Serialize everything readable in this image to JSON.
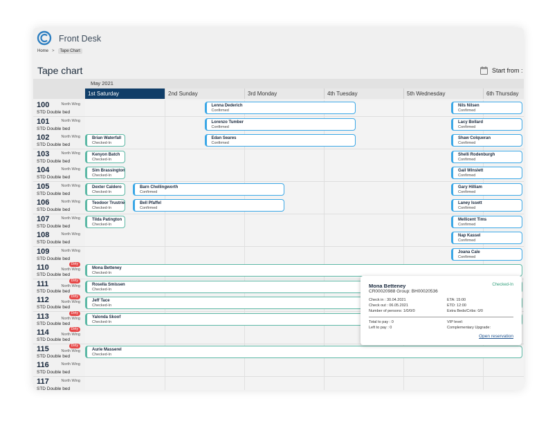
{
  "app": {
    "title": "Front Desk"
  },
  "breadcrumb": {
    "home": "Home",
    "sep": ">",
    "current": "Tape Chart"
  },
  "page": {
    "title": "Tape chart",
    "start_from_label": "Start from :"
  },
  "calendar": {
    "month": "May 2021",
    "days": [
      "1st Saturday",
      "2nd Sunday",
      "3rd Monday",
      "4th Tuesday",
      "5th Wednesday",
      "6th Thursday"
    ],
    "active_day_index": 0
  },
  "rooms": [
    {
      "number": "100",
      "wing": "North Wing",
      "type": "STD Double bed",
      "dirty": ""
    },
    {
      "number": "101",
      "wing": "North Wing",
      "type": "STD Double bed",
      "dirty": ""
    },
    {
      "number": "102",
      "wing": "North Wing",
      "type": "STD Double bed",
      "dirty": ""
    },
    {
      "number": "103",
      "wing": "North Wing",
      "type": "STD Double bed",
      "dirty": ""
    },
    {
      "number": "104",
      "wing": "North Wing",
      "type": "STD Double bed",
      "dirty": ""
    },
    {
      "number": "105",
      "wing": "North Wing",
      "type": "STD Double bed",
      "dirty": ""
    },
    {
      "number": "106",
      "wing": "North Wing",
      "type": "STD Double bed",
      "dirty": ""
    },
    {
      "number": "107",
      "wing": "North Wing",
      "type": "STD Double bed",
      "dirty": ""
    },
    {
      "number": "108",
      "wing": "North Wing",
      "type": "STD Double bed",
      "dirty": ""
    },
    {
      "number": "109",
      "wing": "North Wing",
      "type": "STD Double bed",
      "dirty": ""
    },
    {
      "number": "110",
      "wing": "North Wing",
      "type": "STD Double bed",
      "dirty": "Dirty"
    },
    {
      "number": "111",
      "wing": "North Wing",
      "type": "STD Double bed",
      "dirty": "Dirty"
    },
    {
      "number": "112",
      "wing": "North Wing",
      "type": "STD Double bed",
      "dirty": "Dirty"
    },
    {
      "number": "113",
      "wing": "North Wing",
      "type": "STD Double bed",
      "dirty": "Dirty"
    },
    {
      "number": "114",
      "wing": "North Wing",
      "type": "STD Double bed",
      "dirty": "Dirty"
    },
    {
      "number": "115",
      "wing": "North Wing",
      "type": "STD Double bed",
      "dirty": "Dirty"
    },
    {
      "number": "116",
      "wing": "North Wing",
      "type": "STD Double bed",
      "dirty": ""
    },
    {
      "number": "117",
      "wing": "North Wing",
      "type": "STD Double bed",
      "dirty": ""
    }
  ],
  "bookings": [
    {
      "room": 0,
      "start": 1.5,
      "end": 3.4,
      "guest": "Lenna Dederich",
      "status": "Confirmed"
    },
    {
      "room": 0,
      "start": 4.6,
      "end": 5.5,
      "guest": "Nils Nilsen",
      "status": "Confirmed"
    },
    {
      "room": 1,
      "start": 1.5,
      "end": 3.4,
      "guest": "Lorenzo Tumber",
      "status": "Confirmed"
    },
    {
      "room": 1,
      "start": 4.6,
      "end": 5.5,
      "guest": "Lacy Bollard",
      "status": "Confirmed"
    },
    {
      "room": 2,
      "start": 0.0,
      "end": 0.5,
      "guest": "Brian Waterfall",
      "status": "Checked-In"
    },
    {
      "room": 2,
      "start": 1.5,
      "end": 3.4,
      "guest": "Edan Seares",
      "status": "Confirmed"
    },
    {
      "room": 2,
      "start": 4.6,
      "end": 5.5,
      "guest": "Shaw Colqueran",
      "status": "Confirmed"
    },
    {
      "room": 3,
      "start": 0.0,
      "end": 0.5,
      "guest": "Kenyon Batch",
      "status": "Checked-In"
    },
    {
      "room": 3,
      "start": 4.6,
      "end": 5.5,
      "guest": "Shelli Rodenburgh",
      "status": "Confirmed"
    },
    {
      "room": 4,
      "start": 0.0,
      "end": 0.5,
      "guest": "Sim Brassington",
      "status": "Checked-In"
    },
    {
      "room": 4,
      "start": 4.6,
      "end": 5.5,
      "guest": "Gail Winslett",
      "status": "Confirmed"
    },
    {
      "room": 5,
      "start": 0.0,
      "end": 0.5,
      "guest": "Dexter Caldero",
      "status": "Checked-In"
    },
    {
      "room": 5,
      "start": 0.6,
      "end": 2.5,
      "guest": "Barn Chellingworth",
      "status": "Confirmed"
    },
    {
      "room": 5,
      "start": 4.6,
      "end": 5.5,
      "guest": "Gary Hilliam",
      "status": "Confirmed"
    },
    {
      "room": 6,
      "start": 0.0,
      "end": 0.5,
      "guest": "Teodoor Trustrie",
      "status": "Checked-In"
    },
    {
      "room": 6,
      "start": 0.6,
      "end": 2.5,
      "guest": "Bell Pfaffel",
      "status": "Confirmed"
    },
    {
      "room": 6,
      "start": 4.6,
      "end": 5.5,
      "guest": "Laney Issett",
      "status": "Confirmed"
    },
    {
      "room": 7,
      "start": 0.0,
      "end": 0.5,
      "guest": "Tilda Patington",
      "status": "Checked-In"
    },
    {
      "room": 7,
      "start": 4.6,
      "end": 5.5,
      "guest": "Mellicent Tims",
      "status": "Confirmed"
    },
    {
      "room": 8,
      "start": 4.6,
      "end": 5.5,
      "guest": "Nap Kassel",
      "status": "Confirmed"
    },
    {
      "room": 9,
      "start": 4.6,
      "end": 5.5,
      "guest": "Joana Cale",
      "status": "Confirmed"
    },
    {
      "room": 10,
      "start": 0.0,
      "end": 5.5,
      "guest": "Mona Betteney",
      "status": "Checked-In"
    },
    {
      "room": 11,
      "start": 0.0,
      "end": 5.5,
      "guest": "Rosella Smissen",
      "status": "Checked-In"
    },
    {
      "room": 12,
      "start": 0.0,
      "end": 5.5,
      "guest": "Jeff Tace",
      "status": "Checked-In"
    },
    {
      "room": 13,
      "start": 0.0,
      "end": 5.5,
      "guest": "Yalonda Skoof",
      "status": "Checked-In"
    },
    {
      "room": 15,
      "start": 0.0,
      "end": 5.5,
      "guest": "Aurie Masserel",
      "status": "Checked-In"
    }
  ],
  "popup": {
    "guest": "Mona Betteney",
    "status": "Checked-In",
    "reference": "CR00020988 Group: BH00020536",
    "check_in": "Check in : 30.04.2021",
    "check_out": "Check out : 06.05.2021",
    "persons": "Number of persons: 1/0/0/0",
    "eta": "ETA: 15:00",
    "etd": "ETD: 12:00",
    "extra_beds": "Extra Beds/Cribs: 0/0",
    "total_to_pay": "Total to pay   :   0",
    "left_to_pay": "Left to pay    :   0",
    "vip": "VIP level:",
    "upgrade": "Complementary Upgrade:",
    "open_link": "Open reservation"
  },
  "colors": {
    "confirmed": "#3aa7e6",
    "checked_in": "#5cb8a5",
    "dirty_badge": "#e64848",
    "active_day": "#0f3d68"
  }
}
